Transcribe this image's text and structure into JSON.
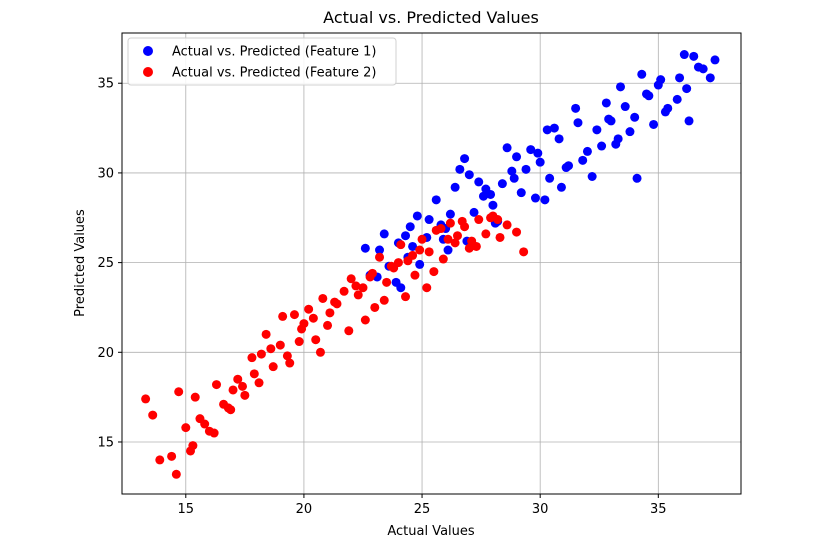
{
  "chart_data": {
    "type": "scatter",
    "title": "Actual vs. Predicted Values",
    "xlabel": "Actual Values",
    "ylabel": "Predicted Values",
    "xlim": [
      12.3,
      38.5
    ],
    "ylim": [
      12.1,
      37.8
    ],
    "xticks": [
      15,
      20,
      25,
      30,
      35
    ],
    "yticks": [
      15,
      20,
      25,
      30,
      35
    ],
    "grid": true,
    "legend_position": "top-left",
    "series": [
      {
        "name": "Actual vs. Predicted (Feature 1)",
        "color": "#0000ff",
        "x": [
          37.4,
          36.9,
          36.5,
          36.2,
          35.9,
          35.4,
          35.1,
          34.8,
          34.5,
          34.0,
          33.6,
          33.2,
          32.8,
          32.4,
          32.0,
          31.6,
          31.2,
          30.8,
          30.4,
          30.0,
          29.6,
          29.2,
          28.8,
          28.4,
          28.0,
          27.6,
          27.2,
          26.8,
          26.4,
          26.0,
          25.6,
          25.2,
          24.8,
          24.4,
          24.0,
          23.6,
          23.2,
          22.8,
          35.8,
          34.3,
          33.0,
          31.8,
          30.6,
          29.4,
          28.2,
          27.0,
          25.8,
          24.6,
          23.4,
          36.3,
          33.4,
          32.2,
          30.2,
          28.6,
          26.9,
          25.3,
          24.1,
          22.6,
          35.3,
          31.5,
          29.9,
          27.9,
          26.2,
          24.9,
          23.1,
          34.6,
          32.6,
          30.9,
          29.0,
          27.4,
          25.9,
          24.5,
          36.1,
          33.8,
          31.1,
          28.9,
          26.6,
          24.3,
          23.9,
          32.9,
          29.8,
          27.7,
          34.1,
          35.0,
          36.7,
          37.2,
          33.3,
          30.3,
          28.1,
          26.1
        ],
        "y": [
          36.3,
          35.8,
          36.5,
          34.7,
          35.3,
          33.6,
          35.2,
          32.7,
          34.4,
          33.1,
          33.7,
          31.6,
          33.9,
          32.4,
          31.2,
          32.8,
          30.4,
          31.9,
          29.7,
          30.6,
          31.3,
          28.9,
          30.1,
          29.4,
          28.2,
          28.7,
          27.8,
          30.8,
          29.2,
          26.9,
          28.5,
          26.4,
          27.6,
          25.3,
          26.1,
          24.8,
          25.7,
          24.3,
          34.1,
          35.5,
          32.9,
          30.7,
          32.5,
          30.2,
          27.3,
          29.9,
          27.1,
          25.9,
          26.6,
          32.9,
          34.8,
          29.8,
          28.5,
          31.4,
          26.2,
          27.4,
          23.6,
          25.8,
          33.4,
          33.6,
          31.1,
          28.8,
          27.7,
          24.9,
          24.2,
          34.3,
          31.5,
          29.2,
          30.9,
          29.5,
          26.3,
          27.0,
          36.6,
          32.3,
          30.3,
          29.7,
          30.2,
          26.5,
          23.9,
          33.0,
          28.6,
          29.1,
          29.7,
          34.9,
          35.9,
          35.3,
          31.9,
          32.4,
          27.2,
          25.7
        ]
      },
      {
        "name": "Actual vs. Predicted (Feature 2)",
        "color": "#ff0000",
        "x": [
          13.3,
          13.6,
          13.9,
          14.4,
          14.7,
          15.0,
          15.2,
          15.4,
          15.6,
          15.8,
          16.0,
          16.3,
          16.6,
          16.9,
          17.2,
          17.5,
          17.8,
          18.1,
          18.4,
          18.7,
          19.0,
          19.3,
          19.6,
          19.9,
          20.2,
          20.5,
          20.8,
          21.1,
          21.4,
          21.7,
          22.0,
          22.3,
          22.6,
          22.9,
          23.2,
          23.5,
          23.8,
          24.1,
          24.4,
          24.7,
          25.0,
          25.3,
          25.6,
          25.9,
          26.2,
          26.5,
          26.8,
          27.1,
          27.4,
          27.7,
          28.0,
          28.3,
          28.6,
          29.0,
          29.3,
          14.6,
          15.3,
          16.2,
          17.0,
          17.9,
          18.6,
          19.4,
          20.0,
          20.7,
          21.3,
          21.9,
          22.5,
          23.0,
          23.7,
          24.3,
          24.9,
          25.5,
          26.1,
          26.7,
          27.3,
          27.9,
          16.8,
          18.2,
          19.8,
          21.0,
          22.2,
          23.4,
          24.6,
          25.8,
          27.0,
          28.2,
          17.4,
          19.1,
          20.4,
          22.8,
          24.0,
          25.2,
          26.4
        ],
        "y": [
          17.4,
          16.5,
          14.0,
          14.2,
          17.8,
          15.8,
          14.5,
          17.5,
          16.3,
          16.0,
          15.6,
          18.2,
          17.1,
          16.8,
          18.5,
          17.6,
          19.7,
          18.3,
          21.0,
          19.2,
          20.4,
          19.8,
          22.1,
          21.3,
          22.4,
          20.7,
          23.0,
          22.2,
          22.7,
          23.4,
          24.1,
          23.2,
          21.8,
          24.4,
          25.3,
          23.9,
          24.7,
          26.0,
          25.1,
          24.3,
          26.3,
          25.6,
          26.8,
          25.2,
          27.2,
          26.5,
          27.0,
          26.2,
          27.4,
          26.6,
          27.6,
          26.4,
          27.1,
          26.7,
          25.6,
          13.2,
          14.8,
          15.5,
          17.9,
          18.8,
          20.2,
          19.4,
          21.6,
          20.0,
          22.8,
          21.2,
          23.6,
          22.5,
          24.8,
          23.1,
          25.7,
          24.5,
          26.3,
          27.3,
          25.9,
          27.5,
          16.9,
          19.9,
          20.6,
          21.5,
          23.7,
          22.9,
          25.4,
          26.9,
          25.8,
          27.4,
          18.1,
          22.0,
          21.9,
          24.2,
          25.0,
          23.6,
          26.1
        ]
      }
    ]
  }
}
